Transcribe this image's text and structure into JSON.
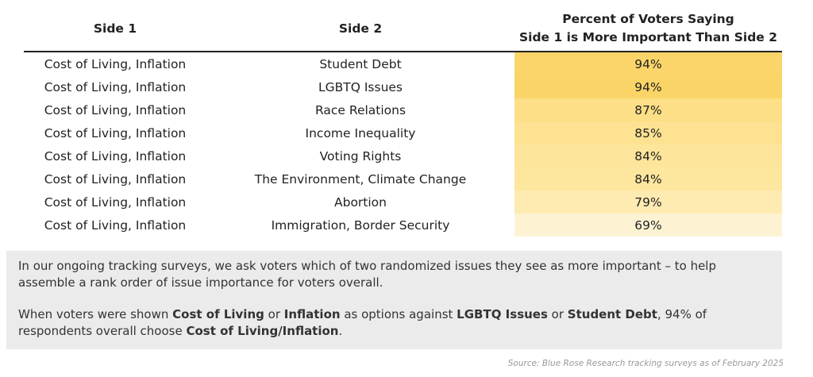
{
  "table": {
    "header": [
      "Side 1",
      "Side 2",
      [
        "Percent of Voters Saying",
        "Side 1 is More Important Than Side 2"
      ]
    ],
    "rows": [
      [
        "Cost of Living, Inflation",
        "Student Debt",
        "94%"
      ],
      [
        "Cost of Living, Inflation",
        "LGBTQ Issues",
        "94%"
      ],
      [
        "Cost of Living, Inflation",
        "Race Relations",
        "87%"
      ],
      [
        "Cost of Living, Inflation",
        "Income Inequality",
        "85%"
      ],
      [
        "Cost of Living, Inflation",
        "Voting Rights",
        "84%"
      ],
      [
        "Cost of Living, Inflation",
        "The Environment, Climate Change",
        "84%"
      ],
      [
        "Cost of Living, Inflation",
        "Abortion",
        "79%"
      ],
      [
        "Cost of Living, Inflation",
        "Immigration, Border Security",
        "69%"
      ]
    ],
    "cell_colors": [
      "#fbd56a",
      "#fbd468",
      "#fcdf86",
      "#fde292",
      "#fde59b",
      "#fde69e",
      "#feebb2",
      "#fdf3d3"
    ]
  },
  "note": {
    "paragraphs": [
      [
        {
          "text": "In our ongoing tracking surveys, we ask voters which of two randomized issues they see as more important – to help assemble a rank order of issue importance for voters overall."
        }
      ],
      [
        {
          "text": "When voters were shown "
        },
        {
          "text": "Cost of Living",
          "bold": true
        },
        {
          "text": " or "
        },
        {
          "text": "Inflation",
          "bold": true
        },
        {
          "text": " as options against "
        },
        {
          "text": "LGBTQ Issues",
          "bold": true
        },
        {
          "text": " or "
        },
        {
          "text": "Student Debt",
          "bold": true
        },
        {
          "text": ", 94% of respondents overall choose "
        },
        {
          "text": "Cost of Living/Inflation",
          "bold": true
        },
        {
          "text": "."
        }
      ]
    ]
  },
  "source": "Source: Blue Rose Research tracking surveys as of February 2025"
}
